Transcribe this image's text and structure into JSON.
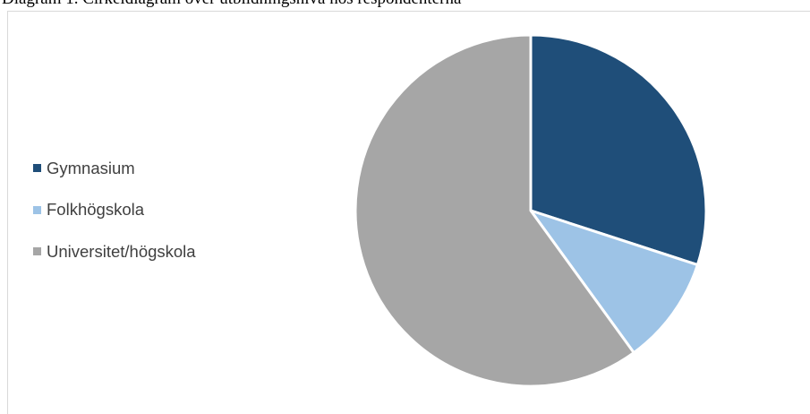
{
  "caption": "Diagram 1. Cirkeldiagram över utbildningsnivå hos respondenterna",
  "chart_data": {
    "type": "pie",
    "title": "",
    "categories": [
      "Gymnasium",
      "Folkhögskola",
      "Universitet/högskola"
    ],
    "values": [
      30,
      10,
      60
    ],
    "colors": [
      "#1f4e79",
      "#9dc3e6",
      "#a6a6a6"
    ],
    "start_angle_deg": 0,
    "direction": "clockwise",
    "legend_position": "left",
    "slice_border_color": "#ffffff"
  }
}
